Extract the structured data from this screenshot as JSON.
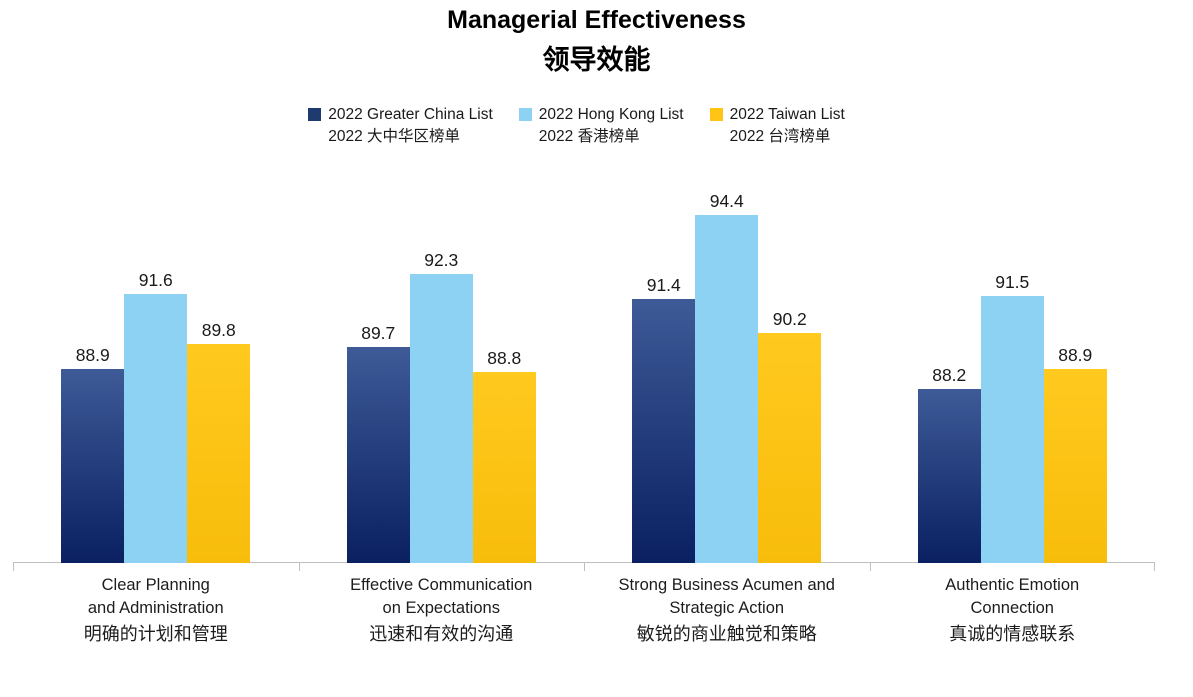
{
  "title": {
    "line1": "Managerial Effectiveness",
    "line2": "领导效能"
  },
  "chart_data": {
    "type": "bar",
    "title": "Managerial Effectiveness",
    "title_zh": "领导效能",
    "categories_en": [
      [
        "Clear Planning",
        "and Administration"
      ],
      [
        "Effective Communication",
        "on Expectations"
      ],
      [
        "Strong Business Acumen and",
        "Strategic Action"
      ],
      [
        "Authentic Emotion",
        "Connection"
      ]
    ],
    "categories_zh": [
      "明确的计划和管理",
      "迅速和有效的沟通",
      "敏锐的商业触觉和策略",
      "真诚的情感联系"
    ],
    "series": [
      {
        "key": "greater-china",
        "name": "2022 Greater China List",
        "name_zh": "2022 大中华区榜单",
        "legend_color": "#1F3A6E",
        "gradient": [
          "#3E5A97",
          "#0A2061"
        ],
        "values": [
          88.9,
          89.7,
          91.4,
          88.2
        ]
      },
      {
        "key": "hong-kong",
        "name": "2022 Hong Kong List",
        "name_zh": "2022 香港榜单",
        "legend_color": "#8DD2F3",
        "color": "#8DD2F3",
        "values": [
          91.6,
          92.3,
          94.4,
          91.5
        ]
      },
      {
        "key": "taiwan",
        "name": "2022 Taiwan List",
        "name_zh": "2022 台湾榜单",
        "legend_color": "#FFC414",
        "gradient": [
          "#FFC91E",
          "#F8BD0B"
        ],
        "values": [
          89.8,
          88.8,
          90.2,
          88.9
        ]
      }
    ],
    "ylim": [
      82,
      96
    ],
    "grid": false,
    "value_labels": true,
    "legend_position": "top-center",
    "axis_color": "#BFBFBF"
  }
}
